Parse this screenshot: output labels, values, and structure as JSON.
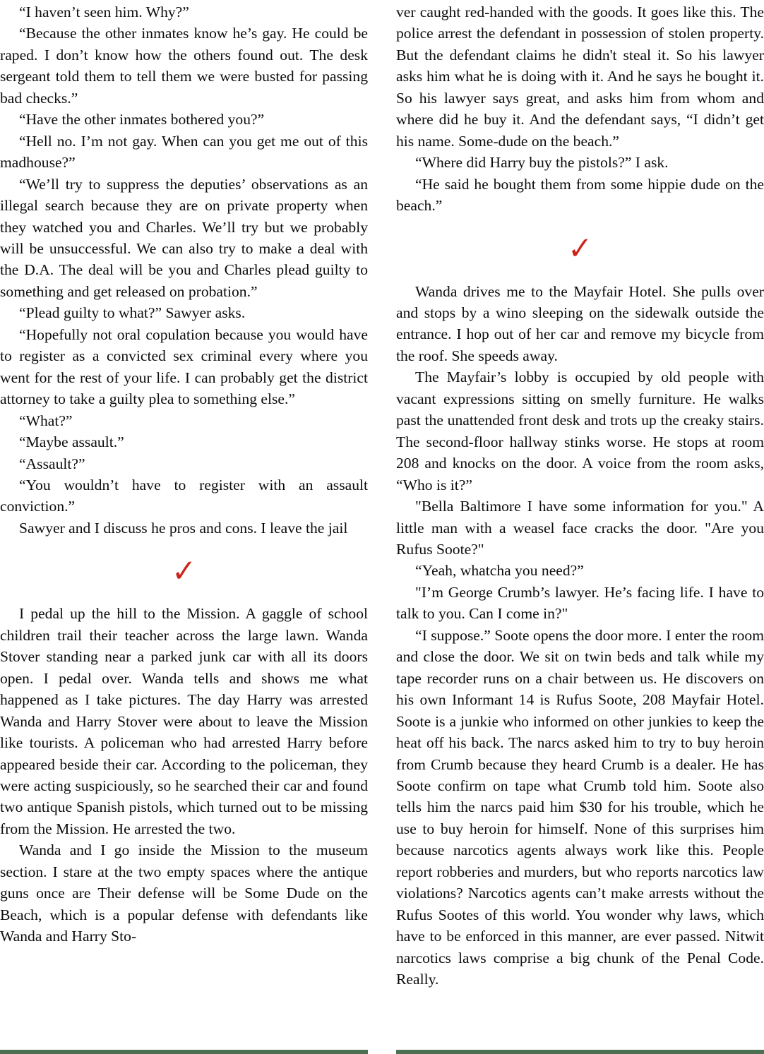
{
  "document": {
    "divider": {
      "glyph": "✓",
      "color": "#ce2418"
    },
    "cutoff_strip_color": "#4b7152",
    "columns": [
      {
        "name": "left",
        "blocks": [
          {
            "type": "paragraph",
            "indent": true,
            "text": "“I haven’t seen him. Why?”"
          },
          {
            "type": "paragraph",
            "indent": true,
            "text": "“Because the other inmates know he’s gay. He could be raped. I don’t know how the others found out. The desk sergeant told them to tell them we were busted for passing bad checks.”"
          },
          {
            "type": "paragraph",
            "indent": true,
            "text": "“Have the other inmates bothered you?”"
          },
          {
            "type": "paragraph",
            "indent": true,
            "text": "“Hell no. I’m not gay. When can you get me out of this madhouse?”"
          },
          {
            "type": "paragraph",
            "indent": true,
            "text": "“We’ll try to suppress the deputies’ observations as an illegal search because they are on private property when they watched you and Charles. We’ll try but we probably will be unsuccessful. We can also try to make a deal with the D.A. The deal will be you and Charles plead guilty to something and get released on probation.”"
          },
          {
            "type": "paragraph",
            "indent": true,
            "text": "“Plead guilty to what?” Sawyer asks."
          },
          {
            "type": "paragraph",
            "indent": true,
            "text": "“Hopefully not oral copulation because you would have to register as a convicted sex criminal every where you went for the rest of your life. I can probably get the district attorney to take a guilty plea to something else.”"
          },
          {
            "type": "paragraph",
            "indent": true,
            "text": "“What?”"
          },
          {
            "type": "paragraph",
            "indent": true,
            "text": "“Maybe assault.”"
          },
          {
            "type": "paragraph",
            "indent": true,
            "text": "“Assault?”"
          },
          {
            "type": "paragraph",
            "indent": true,
            "text": "“You wouldn’t have to register with an assault conviction.”"
          },
          {
            "type": "paragraph",
            "indent": true,
            "text": "Sawyer and I discuss he pros and cons. I leave the jail"
          },
          {
            "type": "scene-break"
          },
          {
            "type": "paragraph",
            "indent": true,
            "text": "I pedal up the hill to the Mission. A gaggle of school children trail their teacher across the large lawn. Wanda Stover standing near a parked junk car with all its doors open. I pedal over. Wanda tells and shows me what happened as I take pictures. The day Harry was arrested Wanda and Harry Stover were about to leave the Mission like tourists. A policeman who had arrested Harry before appeared beside their car. According to the policeman, they were acting suspiciously, so he searched their car and found two antique Spanish pistols, which turned out to be missing from the Mission. He arrested the two."
          },
          {
            "type": "paragraph",
            "indent": true,
            "text": "Wanda and I go inside the Mission to the museum section. I stare at the two empty spaces where the antique guns once are Their defense will be Some Dude on the Beach, which is a popular defense with defendants like Wanda and Harry Sto-"
          }
        ]
      },
      {
        "name": "right",
        "blocks": [
          {
            "type": "paragraph",
            "indent": false,
            "text": "ver caught red-handed with the goods. It goes like this. The police arrest the defendant in possession of stolen property. But the defendant claims he didn't steal it. So his lawyer asks him what he is doing with it. And he says he bought it. So his lawyer says great, and asks him from whom and where did he buy it. And the defendant says, “I didn’t get his name. Some-dude on the beach.”"
          },
          {
            "type": "paragraph",
            "indent": true,
            "text": "“Where did Harry buy the pistols?” I ask."
          },
          {
            "type": "paragraph",
            "indent": true,
            "text": "“He said he bought them from some hippie dude on the beach.”"
          },
          {
            "type": "scene-break"
          },
          {
            "type": "paragraph",
            "indent": true,
            "text": "Wanda drives me to the Mayfair Hotel. She pulls over and stops by a wino sleeping on the sidewalk outside the entrance. I hop out of her car and remove my bicycle from the roof. She speeds away."
          },
          {
            "type": "paragraph",
            "indent": true,
            "text": "The Mayfair’s lobby is occupied by old people with vacant expressions sitting on smelly furniture. He walks past the unattended front desk and trots up the creaky stairs. The second-floor hallway stinks worse. He stops at room 208 and knocks on the door. A voice from the room asks, “Who is it?”"
          },
          {
            "type": "paragraph",
            "indent": true,
            "text": "\"Bella Baltimore I have some information for you.\" A little man with a weasel face cracks the door. \"Are you Rufus Soote?\""
          },
          {
            "type": "paragraph",
            "indent": true,
            "text": "“Yeah, whatcha you need?”"
          },
          {
            "type": "paragraph",
            "indent": true,
            "text": "\"I’m George Crumb’s lawyer. He’s facing life. I have to talk to you. Can I come in?\""
          },
          {
            "type": "paragraph",
            "indent": true,
            "text": "“I suppose.” Soote opens the door more. I enter the room and close the door. We sit on twin beds and talk while my tape recorder runs on a chair between us. He discovers on his own Informant 14 is Rufus Soote, 208 Mayfair Hotel. Soote is a junkie who informed on other junkies to keep the heat off his back. The narcs asked him to try to buy heroin from Crumb because they heard Crumb is a dealer. He has Soote confirm on tape what Crumb told him. Soote also tells him the narcs paid him $30 for his trouble, which he use to buy heroin for himself. None of this surprises him because narcotics agents always work like this. People report robberies and murders, but who reports narcotics law violations? Narcotics agents can’t make arrests without the Rufus Sootes of this world. You wonder why laws, which have to be enforced in this manner, are ever passed. Nitwit narcotics laws comprise a big chunk of the Penal Code. Really."
          }
        ]
      }
    ]
  }
}
